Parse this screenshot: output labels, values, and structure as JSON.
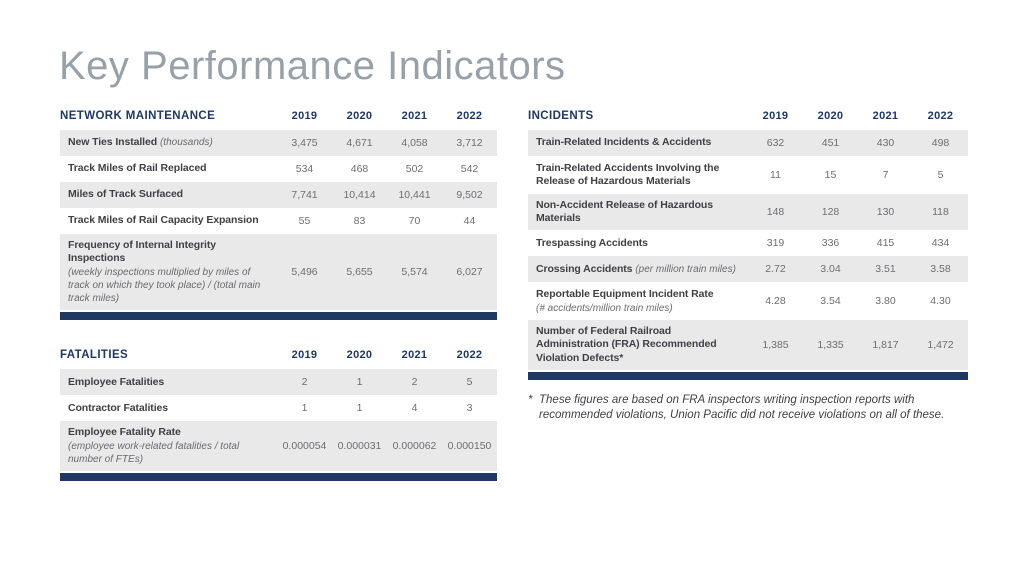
{
  "page": {
    "title": "Key Performance Indicators"
  },
  "colors": {
    "brand_navy": "#1f3864",
    "row_shade": "#e9e9ea",
    "title_gray": "#99a1a8",
    "label_gray": "#404145",
    "value_gray": "#6d6e71"
  },
  "tables": {
    "network_maintenance": {
      "title": "NETWORK MAINTENANCE",
      "years": [
        "2019",
        "2020",
        "2021",
        "2022"
      ],
      "rows": [
        {
          "label": "New Ties Installed",
          "note": "(thousands)",
          "values": [
            "3,475",
            "4,671",
            "4,058",
            "3,712"
          ]
        },
        {
          "label": "Track Miles of Rail Replaced",
          "values": [
            "534",
            "468",
            "502",
            "542"
          ]
        },
        {
          "label": "Miles of Track Surfaced",
          "values": [
            "7,741",
            "10,414",
            "10,441",
            "9,502"
          ]
        },
        {
          "label": "Track Miles of Rail Capacity Expansion",
          "values": [
            "55",
            "83",
            "70",
            "44"
          ]
        },
        {
          "label": "Frequency of Internal Integrity Inspections",
          "note": "(weekly inspections multiplied by miles of track on which they took place) / (total main track miles)",
          "values": [
            "5,496",
            "5,655",
            "5,574",
            "6,027"
          ]
        }
      ]
    },
    "fatalities": {
      "title": "FATALITIES",
      "years": [
        "2019",
        "2020",
        "2021",
        "2022"
      ],
      "rows": [
        {
          "label": "Employee Fatalities",
          "values": [
            "2",
            "1",
            "2",
            "5"
          ]
        },
        {
          "label": "Contractor Fatalities",
          "values": [
            "1",
            "1",
            "4",
            "3"
          ]
        },
        {
          "label": "Employee Fatality Rate",
          "note": "(employee work-related fatalities / total number of FTEs)",
          "values": [
            "0.000054",
            "0.000031",
            "0.000062",
            "0.000150"
          ]
        }
      ]
    },
    "incidents": {
      "title": "INCIDENTS",
      "years": [
        "2019",
        "2020",
        "2021",
        "2022"
      ],
      "rows": [
        {
          "label": "Train-Related Incidents & Accidents",
          "values": [
            "632",
            "451",
            "430",
            "498"
          ]
        },
        {
          "label": "Train-Related Accidents Involving the Release of Hazardous Materials",
          "values": [
            "11",
            "15",
            "7",
            "5"
          ]
        },
        {
          "label": "Non-Accident Release of Hazardous Materials",
          "values": [
            "148",
            "128",
            "130",
            "118"
          ]
        },
        {
          "label": "Trespassing Accidents",
          "values": [
            "319",
            "336",
            "415",
            "434"
          ]
        },
        {
          "label": "Crossing Accidents",
          "note": "(per million train miles)",
          "values": [
            "2.72",
            "3.04",
            "3.51",
            "3.58"
          ]
        },
        {
          "label": "Reportable Equipment Incident Rate",
          "note": "(# accidents/million train miles)",
          "values": [
            "4.28",
            "3.54",
            "3.80",
            "4.30"
          ]
        },
        {
          "label": "Number of Federal Railroad Administration (FRA) Recommended Violation Defects*",
          "values": [
            "1,385",
            "1,335",
            "1,817",
            "1,472"
          ]
        }
      ]
    }
  },
  "footnote": {
    "marker": "*",
    "text": "These figures are based on FRA inspectors writing inspection reports with recommended violations, Union Pacific did not receive violations on all of these."
  }
}
